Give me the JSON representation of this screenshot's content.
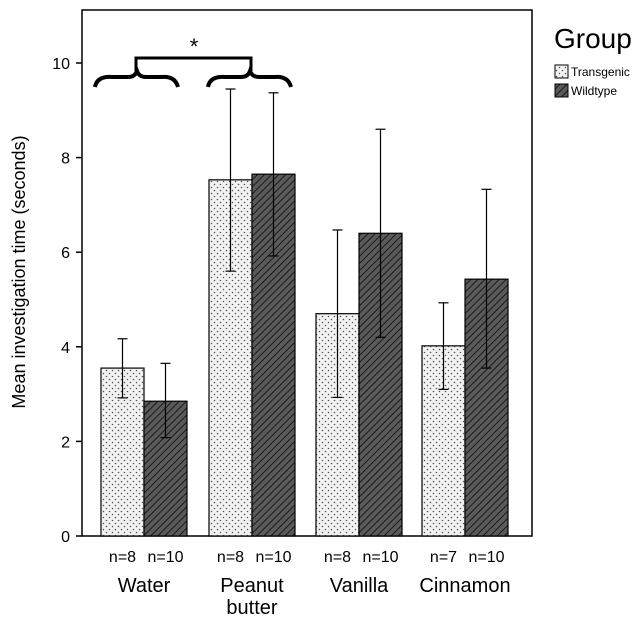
{
  "chart_data": {
    "type": "bar",
    "ylabel": "Mean investigation time (seconds)",
    "ylim": [
      0,
      11
    ],
    "yticks": [
      0,
      2,
      4,
      6,
      8,
      10
    ],
    "grid": false,
    "legend_position": "right, outside plot",
    "categories": [
      {
        "label": "Water",
        "label_lines": [
          "Water"
        ],
        "n": [
          "n=8",
          "n=10"
        ]
      },
      {
        "label": "Peanut butter",
        "label_lines": [
          "Peanut",
          "butter"
        ],
        "n": [
          "n=8",
          "n=10"
        ]
      },
      {
        "label": "Vanilla",
        "label_lines": [
          "Vanilla"
        ],
        "n": [
          "n=8",
          "n=10"
        ]
      },
      {
        "label": "Cinnamon",
        "label_lines": [
          "Cinnamon"
        ],
        "n": [
          "n=7",
          "n=10"
        ]
      }
    ],
    "legend_title": "Group",
    "series": [
      {
        "name": "Transgenic",
        "pattern": "dots",
        "fill_color": "#f0f0f0",
        "values": [
          3.55,
          7.53,
          4.7,
          4.02
        ],
        "error_low": [
          2.92,
          5.6,
          2.93,
          3.1
        ],
        "error_high": [
          4.17,
          9.45,
          6.47,
          4.93
        ]
      },
      {
        "name": "Wildtype",
        "pattern": "diagonal-hatch",
        "fill_color": "#555555",
        "values": [
          2.85,
          7.65,
          6.4,
          5.43
        ],
        "error_low": [
          2.08,
          5.92,
          4.2,
          3.55
        ],
        "error_high": [
          3.65,
          9.37,
          8.6,
          7.33
        ]
      }
    ],
    "annotation": {
      "text": "*",
      "between": [
        "Water",
        "Peanut butter"
      ],
      "y": 10.1
    }
  }
}
